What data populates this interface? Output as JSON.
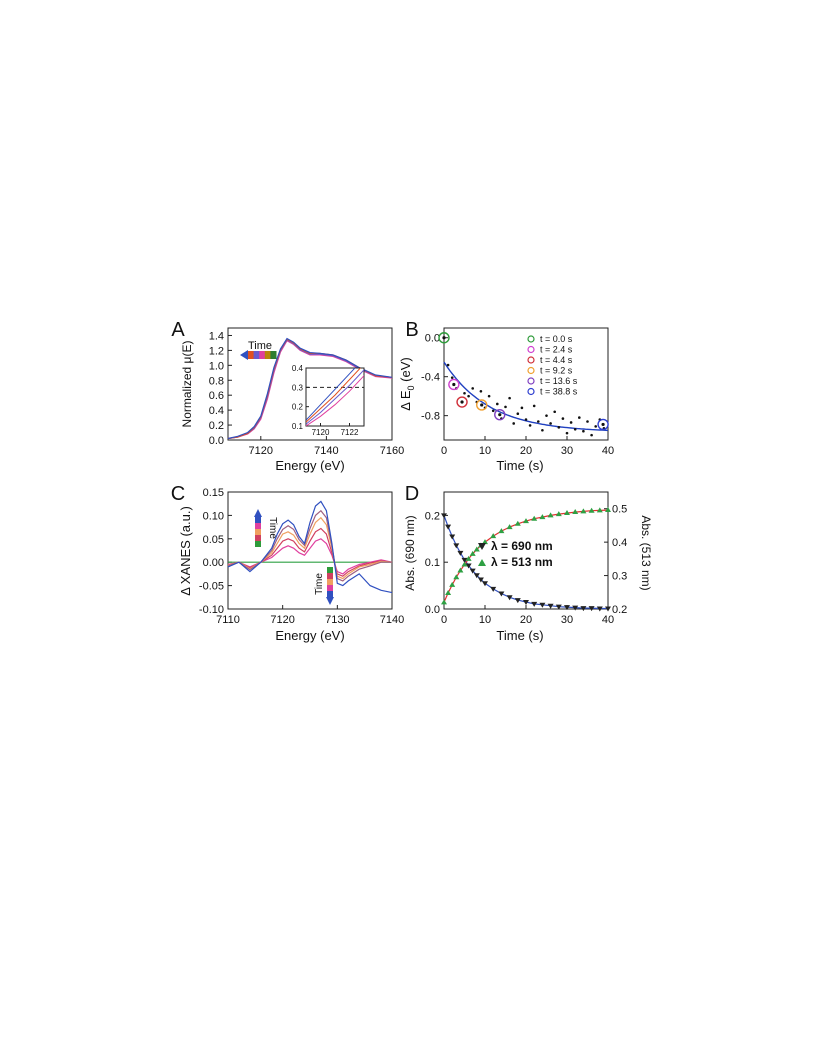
{
  "chart_data": [
    {
      "panel": "A",
      "type": "line",
      "xlabel": "Energy (eV)",
      "ylabel": "Normalized μ(E)",
      "xlim": [
        7110,
        7160
      ],
      "ylim": [
        0,
        1.5
      ],
      "xticks": [
        "7120",
        "7140",
        "7160"
      ],
      "yticks": [
        "0.0",
        "0.2",
        "0.4",
        "0.6",
        "0.8",
        "1.0",
        "1.2",
        "1.4"
      ],
      "annotation": "Time",
      "series_colors": [
        "#2e7d32",
        "#b8860b",
        "#e0409f",
        "#6a5acd",
        "#e05020",
        "#3050c0"
      ],
      "x": [
        7110,
        7113,
        7116,
        7118,
        7120,
        7122,
        7124,
        7126,
        7128,
        7130,
        7132,
        7135,
        7138,
        7142,
        7146,
        7150,
        7155,
        7160
      ],
      "series": [
        {
          "values": [
            0.02,
            0.04,
            0.08,
            0.15,
            0.28,
            0.55,
            0.9,
            1.18,
            1.33,
            1.28,
            1.2,
            1.14,
            1.14,
            1.12,
            1.05,
            0.95,
            0.85,
            0.83
          ]
        },
        {
          "values": [
            0.02,
            0.04,
            0.09,
            0.16,
            0.3,
            0.58,
            0.93,
            1.2,
            1.34,
            1.29,
            1.21,
            1.15,
            1.15,
            1.13,
            1.06,
            0.96,
            0.86,
            0.84
          ]
        },
        {
          "values": [
            0.02,
            0.04,
            0.09,
            0.17,
            0.31,
            0.6,
            0.95,
            1.21,
            1.35,
            1.3,
            1.22,
            1.16,
            1.16,
            1.14,
            1.07,
            0.97,
            0.86,
            0.84
          ]
        },
        {
          "values": [
            0.02,
            0.05,
            0.1,
            0.18,
            0.32,
            0.62,
            0.97,
            1.22,
            1.36,
            1.31,
            1.23,
            1.17,
            1.16,
            1.14,
            1.07,
            0.97,
            0.87,
            0.84
          ]
        }
      ],
      "inset": {
        "xlim": [
          7119,
          7123
        ],
        "ylim": [
          0.1,
          0.4
        ],
        "xticks": [
          "7120",
          "7122"
        ],
        "yticks": [
          "0.1",
          "0.2",
          "0.3",
          "0.4"
        ],
        "dashed_line_y": 0.3,
        "x": [
          7119,
          7120,
          7121,
          7122,
          7123
        ],
        "series": [
          {
            "values": [
              0.1,
              0.15,
              0.21,
              0.28,
              0.36
            ]
          },
          {
            "values": [
              0.11,
              0.17,
              0.24,
              0.31,
              0.39
            ]
          },
          {
            "values": [
              0.12,
              0.19,
              0.26,
              0.34,
              0.42
            ]
          },
          {
            "values": [
              0.13,
              0.21,
              0.29,
              0.37,
              0.45
            ]
          }
        ]
      }
    },
    {
      "panel": "B",
      "type": "scatter",
      "xlabel": "Time  (s)",
      "ylabel": "Δ E",
      "ylabel_sub": "0",
      "ylabel_unit": " (eV)",
      "xlim": [
        0,
        40
      ],
      "ylim": [
        -1.05,
        0.1
      ],
      "xticks": [
        "0",
        "10",
        "20",
        "30",
        "40"
      ],
      "yticks": [
        "0.0",
        "-0.4",
        "-0.8"
      ],
      "legend": [
        {
          "label": "t =    0.0 s",
          "color": "#2e9b3a"
        },
        {
          "label": "t =    2.4 s",
          "color": "#d040d0"
        },
        {
          "label": "t =    4.4 s",
          "color": "#d0303a"
        },
        {
          "label": "t =    9.2 s",
          "color": "#f0a030"
        },
        {
          "label": "t =  13.6 s",
          "color": "#8040c0"
        },
        {
          "label": "t = 38.8 s",
          "color": "#3040d0"
        }
      ],
      "highlighted": [
        {
          "x": 0.0,
          "y": 0.0
        },
        {
          "x": 2.4,
          "y": -0.48
        },
        {
          "x": 4.4,
          "y": -0.66
        },
        {
          "x": 9.2,
          "y": -0.69
        },
        {
          "x": 13.6,
          "y": -0.79
        },
        {
          "x": 38.8,
          "y": -0.89
        }
      ],
      "points": [
        {
          "x": 1,
          "y": -0.28
        },
        {
          "x": 2,
          "y": -0.41
        },
        {
          "x": 3,
          "y": -0.52
        },
        {
          "x": 5,
          "y": -0.57
        },
        {
          "x": 6,
          "y": -0.6
        },
        {
          "x": 7,
          "y": -0.52
        },
        {
          "x": 8,
          "y": -0.66
        },
        {
          "x": 9,
          "y": -0.55
        },
        {
          "x": 10,
          "y": -0.72
        },
        {
          "x": 11,
          "y": -0.6
        },
        {
          "x": 12,
          "y": -0.75
        },
        {
          "x": 13,
          "y": -0.68
        },
        {
          "x": 14,
          "y": -0.83
        },
        {
          "x": 15,
          "y": -0.71
        },
        {
          "x": 16,
          "y": -0.62
        },
        {
          "x": 17,
          "y": -0.88
        },
        {
          "x": 18,
          "y": -0.78
        },
        {
          "x": 19,
          "y": -0.72
        },
        {
          "x": 20,
          "y": -0.84
        },
        {
          "x": 21,
          "y": -0.9
        },
        {
          "x": 22,
          "y": -0.7
        },
        {
          "x": 23,
          "y": -0.86
        },
        {
          "x": 24,
          "y": -0.95
        },
        {
          "x": 25,
          "y": -0.8
        },
        {
          "x": 26,
          "y": -0.88
        },
        {
          "x": 27,
          "y": -0.76
        },
        {
          "x": 28,
          "y": -0.92
        },
        {
          "x": 29,
          "y": -0.83
        },
        {
          "x": 30,
          "y": -0.98
        },
        {
          "x": 31,
          "y": -0.87
        },
        {
          "x": 32,
          "y": -0.94
        },
        {
          "x": 33,
          "y": -0.82
        },
        {
          "x": 34,
          "y": -0.96
        },
        {
          "x": 35,
          "y": -0.86
        },
        {
          "x": 36,
          "y": -1.0
        },
        {
          "x": 37,
          "y": -0.91
        },
        {
          "x": 38,
          "y": -0.84
        },
        {
          "x": 39,
          "y": -0.93
        }
      ],
      "fit": {
        "type": "exponential",
        "a": -0.97,
        "b": 0.72,
        "tau": 11
      }
    },
    {
      "panel": "C",
      "type": "line",
      "xlabel": "Energy (eV)",
      "ylabel": "Δ XANES (a.u.)",
      "xlim": [
        7110,
        7140
      ],
      "ylim": [
        -0.1,
        0.15
      ],
      "xticks": [
        "7110",
        "7120",
        "7130",
        "7140"
      ],
      "yticks": [
        "0.15",
        "0.10",
        "0.05",
        "0.00",
        "-0.05",
        "-0.10"
      ],
      "annotation": "Time",
      "zero_line_color": "#2ea043",
      "x": [
        7110,
        7112,
        7114,
        7116,
        7118,
        7119,
        7120,
        7121,
        7122,
        7123,
        7124,
        7125,
        7126,
        7127,
        7128,
        7129,
        7130,
        7131,
        7132,
        7134,
        7136,
        7138,
        7140
      ],
      "series": [
        {
          "color": "#e0409f",
          "values": [
            -0.005,
            0,
            -0.01,
            0,
            0.01,
            0.02,
            0.03,
            0.035,
            0.03,
            0.02,
            0.015,
            0.03,
            0.045,
            0.05,
            0.04,
            0.015,
            -0.02,
            -0.025,
            -0.015,
            -0.005,
            0,
            0.005,
            0
          ]
        },
        {
          "color": "#d04060",
          "values": [
            -0.006,
            0,
            -0.012,
            0,
            0.015,
            0.03,
            0.045,
            0.05,
            0.045,
            0.03,
            0.022,
            0.045,
            0.065,
            0.072,
            0.06,
            0.02,
            -0.025,
            -0.03,
            -0.02,
            -0.008,
            -0.002,
            0.003,
            0
          ]
        },
        {
          "color": "#f0a060",
          "values": [
            -0.007,
            0,
            -0.014,
            0,
            0.02,
            0.04,
            0.06,
            0.065,
            0.058,
            0.04,
            0.03,
            0.06,
            0.085,
            0.095,
            0.08,
            0.03,
            -0.03,
            -0.035,
            -0.025,
            -0.01,
            -0.005,
            0.002,
            0
          ]
        },
        {
          "color": "#a06080",
          "values": [
            -0.008,
            0,
            -0.016,
            0,
            0.025,
            0.05,
            0.07,
            0.078,
            0.07,
            0.048,
            0.036,
            0.072,
            0.1,
            0.11,
            0.095,
            0.035,
            -0.035,
            -0.04,
            -0.03,
            -0.015,
            -0.008,
            0,
            0
          ]
        },
        {
          "color": "#3050c0",
          "values": [
            -0.01,
            0,
            -0.02,
            0,
            0.03,
            0.06,
            0.082,
            0.09,
            0.08,
            0.055,
            0.04,
            0.085,
            0.12,
            0.13,
            0.11,
            0.04,
            -0.045,
            -0.05,
            -0.04,
            -0.025,
            -0.05,
            -0.06,
            -0.065
          ]
        }
      ]
    },
    {
      "panel": "D",
      "type": "line",
      "xlabel": "Time  (s)",
      "ylabel": "Abs. (690 nm)",
      "ylabel_right": "Abs. (513 nm)",
      "xlim": [
        0,
        40
      ],
      "ylim": [
        0,
        0.25
      ],
      "ylim_right": [
        0.2,
        0.55
      ],
      "xticks": [
        "0",
        "10",
        "20",
        "30",
        "40"
      ],
      "yticks": [
        "0.2",
        "0.1",
        "0.0"
      ],
      "yticks_right": [
        "0.5",
        "0.4",
        "0.3",
        "0.2"
      ],
      "x": [
        0,
        1,
        2,
        3,
        4,
        5,
        6,
        7,
        8,
        9,
        10,
        12,
        14,
        16,
        18,
        20,
        22,
        24,
        26,
        28,
        30,
        32,
        34,
        36,
        38,
        40
      ],
      "series": [
        {
          "name": "λ = 690 nm",
          "axis": "left",
          "marker": "down-triangle",
          "color": "#222222",
          "fit_color": "#3050c0",
          "values": [
            0.2,
            0.176,
            0.155,
            0.136,
            0.12,
            0.105,
            0.093,
            0.082,
            0.072,
            0.063,
            0.055,
            0.043,
            0.033,
            0.025,
            0.019,
            0.015,
            0.011,
            0.009,
            0.007,
            0.005,
            0.004,
            0.003,
            0.002,
            0.002,
            0.001,
            0.001
          ]
        },
        {
          "name": "λ = 513 nm",
          "axis": "right",
          "marker": "up-triangle",
          "color": "#2ea043",
          "fit_color": "#e03030",
          "values": [
            0.22,
            0.248,
            0.272,
            0.295,
            0.315,
            0.333,
            0.35,
            0.365,
            0.378,
            0.39,
            0.4,
            0.418,
            0.433,
            0.445,
            0.455,
            0.463,
            0.47,
            0.475,
            0.48,
            0.484,
            0.487,
            0.49,
            0.492,
            0.494,
            0.495,
            0.496
          ]
        }
      ]
    }
  ],
  "panel_letters": [
    "A",
    "B",
    "C",
    "D"
  ]
}
